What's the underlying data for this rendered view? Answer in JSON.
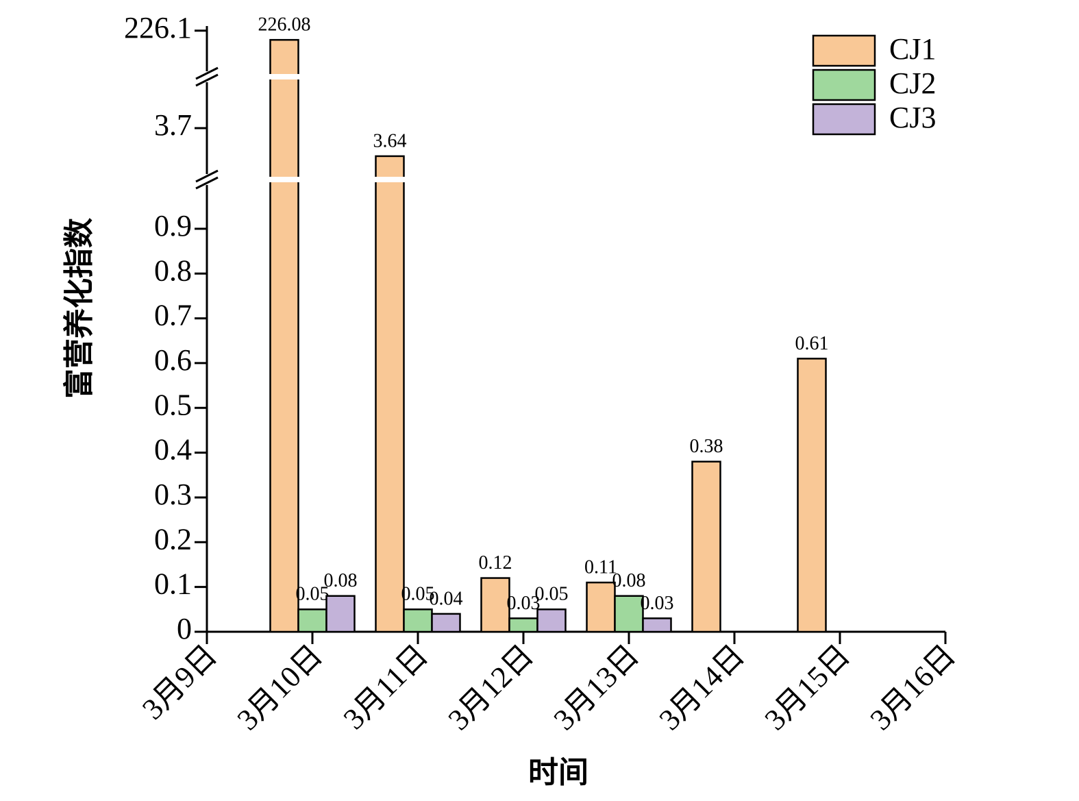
{
  "chart_data": {
    "type": "bar",
    "y_label": "富营养化指数",
    "x_label": "时间",
    "categories": [
      "3月9日",
      "3月10日",
      "3月11日",
      "3月12日",
      "3月13日",
      "3月14日",
      "3月15日",
      "3月16日"
    ],
    "series": [
      {
        "name": "CJ1",
        "color": "#f9c896",
        "values": [
          null,
          226.08,
          3.64,
          0.12,
          0.11,
          0.38,
          0.61,
          null
        ]
      },
      {
        "name": "CJ2",
        "color": "#9fd89d",
        "values": [
          null,
          0.05,
          0.05,
          0.03,
          0.08,
          null,
          null,
          null
        ]
      },
      {
        "name": "CJ3",
        "color": "#c3b3d9",
        "values": [
          null,
          0.08,
          0.04,
          0.05,
          0.03,
          null,
          null,
          null
        ]
      }
    ],
    "y_segments": [
      {
        "ylim": [
          0,
          1.01
        ],
        "yticks": [
          0,
          0.1,
          0.2,
          0.3,
          0.4,
          0.5,
          0.6,
          0.7,
          0.8,
          0.9
        ]
      },
      {
        "ylim": [
          3.59,
          3.81
        ],
        "yticks": [
          3.7
        ]
      },
      {
        "ylim": [
          226,
          226.11
        ],
        "yticks": [
          226.1
        ]
      }
    ],
    "legend": "upper right",
    "grid": false
  }
}
